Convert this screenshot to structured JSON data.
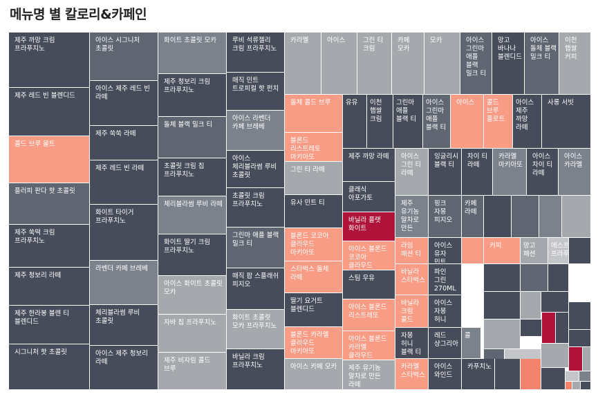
{
  "title": "메뉴명 별 칼로리&카페인",
  "colors": {
    "dark": "#474c5a",
    "mid": "#5f6672",
    "steel": "#7c828c",
    "light": "#a5a9ad",
    "pale": "#c3c5c8",
    "salmon": "#f99c86",
    "coral": "#f3836c",
    "crimson": "#b0133a"
  },
  "chart_data": {
    "type": "treemap",
    "title": "메뉴명 별 칼로리&카페인",
    "tiles": [
      {
        "label": "제주 까망 크림 프라푸치노",
        "color": "dark"
      },
      {
        "label": "제주 레드 빈 블렌디드",
        "color": "dark"
      },
      {
        "label": "콜드 브루 몰트",
        "color": "salmon"
      },
      {
        "label": "플러피 판다 핫 초콜릿",
        "color": "mid"
      },
      {
        "label": "제주 쑥떡 크림 프라푸치노",
        "color": "dark"
      },
      {
        "label": "제주 청보리 라떼",
        "color": "dark"
      },
      {
        "label": "제주 한라봉 블렌 티 블렌디드",
        "color": "dark"
      },
      {
        "label": "시그니처 핫 초콜릿",
        "color": "dark"
      },
      {
        "label": "아이스 시그니처 초콜릿",
        "color": "mid"
      },
      {
        "label": "아이스 제주 레드 빈 라떼",
        "color": "dark"
      },
      {
        "label": "제주 쑥쑥 라떼",
        "color": "dark"
      },
      {
        "label": "제주 레드 빈 라떼",
        "color": "dark"
      },
      {
        "label": "화이트 타이거 프라푸치노",
        "color": "dark"
      },
      {
        "label": "라벤더 카페 브레베",
        "color": "steel"
      },
      {
        "label": "체리블라썸 루비 초콜릿",
        "color": "dark"
      },
      {
        "label": "아이스 제주 청보리 라떼",
        "color": "dark"
      },
      {
        "label": "화이트 초콜릿 모카",
        "color": "steel"
      },
      {
        "label": "제주 청보리 크림 프라푸치노",
        "color": "dark"
      },
      {
        "label": "돌체 블랙 밀크 티",
        "color": "mid"
      },
      {
        "label": "초콜릿 크림 칩 프라푸치노",
        "color": "dark"
      },
      {
        "label": "체리블라썸 루비 라떼",
        "color": "steel"
      },
      {
        "label": "화이트 딸기 크림 프라푸치노",
        "color": "dark"
      },
      {
        "label": "아이스 화이트 초콜릿 모카",
        "color": "light"
      },
      {
        "label": "자바 칩 프라푸치노",
        "color": "light"
      },
      {
        "label": "제주 비자림 콜드 브루",
        "color": "light"
      },
      {
        "label": "루비 석류젤리 크림 프라푸치노",
        "color": "dark"
      },
      {
        "label": "매직 민트 트로피컬 핫 펀치",
        "color": "dark"
      },
      {
        "label": "아이스 라벤더 카페 브레베",
        "color": "steel"
      },
      {
        "label": "아이스 체리블라썸 루비 초콜릿",
        "color": "dark"
      },
      {
        "label": "초콜릿 크림 프라푸치노",
        "color": "dark"
      },
      {
        "label": "그린마 애플 블랙 밀크 티",
        "color": "mid"
      },
      {
        "label": "매직 팝 스플래쉬 피지오",
        "color": "dark"
      },
      {
        "label": "화이트 초콜릿 모카 프라푸치노",
        "color": "light"
      },
      {
        "label": "바닐라 크림 프라푸치노",
        "color": "dark"
      },
      {
        "label": "카라멜",
        "color": "light"
      },
      {
        "label": "아이스",
        "color": "light"
      },
      {
        "label": "그린 티 크림",
        "color": "light"
      },
      {
        "label": "카페 모카",
        "color": "light"
      },
      {
        "label": "모카",
        "color": "light"
      },
      {
        "label": "아이스 그린마 애플 블랙 밀크 티",
        "color": "mid"
      },
      {
        "label": "망고 바나나 블렌디드",
        "color": "dark"
      },
      {
        "label": "아이스 돌체 블랙 밀크 티",
        "color": "mid"
      },
      {
        "label": "이천 햅쌀 커피",
        "color": "light"
      },
      {
        "label": "돌체 콜드 브루",
        "color": "salmon"
      },
      {
        "label": "블론드 리스트레토 마키아또",
        "color": "salmon"
      },
      {
        "label": "그린 티 라떼",
        "color": "light"
      },
      {
        "label": "유사 민트 티",
        "color": "dark"
      },
      {
        "label": "블론드 코코아 클라우드 마키아또",
        "color": "salmon"
      },
      {
        "label": "스타벅스 돌체 라떼",
        "color": "salmon"
      },
      {
        "label": "딸기 요거트 블렌디드",
        "color": "dark"
      },
      {
        "label": "블론드 카라멜 클라우드 마키아또",
        "color": "salmon"
      },
      {
        "label": "아이스 카페 모카",
        "color": "light"
      },
      {
        "label": "유유",
        "color": "dark"
      },
      {
        "label": "이천 햅쌀 크림",
        "color": "dark"
      },
      {
        "label": "그린마 애플 블랙 티",
        "color": "dark"
      },
      {
        "label": "아이스 그린마 애플 블랙 티",
        "color": "mid"
      },
      {
        "label": "아이스",
        "color": "salmon"
      },
      {
        "label": "콜드 브루 플로트",
        "color": "salmon"
      },
      {
        "label": "아이스 제주 까망 라떼",
        "color": "dark"
      },
      {
        "label": "사롱 서빗",
        "color": "dark"
      },
      {
        "label": "제주 까망 라떼",
        "color": "dark"
      },
      {
        "label": "클래식 아포가토",
        "color": "dark"
      },
      {
        "label": "바닐라 플랫 화이트",
        "color": "crimson"
      },
      {
        "label": "아이스 블론드 코코아 클라우드",
        "color": "salmon"
      },
      {
        "label": "스팀 우유",
        "color": "dark"
      },
      {
        "label": "아이스 블론드 리스트레또",
        "color": "salmon"
      },
      {
        "label": "아이스 블론드 카라멜 클라우드",
        "color": "salmon"
      },
      {
        "label": "제주 유기농 말차로 만든 라떼",
        "color": "light"
      },
      {
        "label": "아이스 그린 티 라떼",
        "color": "light"
      },
      {
        "label": "잉글리시 블랙 티",
        "color": "dark"
      },
      {
        "label": "차이 티 라떼",
        "color": "dark"
      },
      {
        "label": "카라멜 마키아또",
        "color": "steel"
      },
      {
        "label": "아이스 차이 티 라떼",
        "color": "dark"
      },
      {
        "label": "아이스 카라멜",
        "color": "steel"
      },
      {
        "label": "제주 유기농 말차로 만든",
        "color": "steel"
      },
      {
        "label": "핑크 자몽 피지오",
        "color": "mid"
      },
      {
        "label": "카페 라떼",
        "color": "mid"
      },
      {
        "label": "라임 패션 티",
        "color": "salmon"
      },
      {
        "label": "아이스 유자 민트",
        "color": "dark"
      },
      {
        "label": "커피",
        "color": "salmon"
      },
      {
        "label": "망고 패션",
        "color": "light"
      },
      {
        "label": "에스프레소 프라푸치노",
        "color": "pale"
      },
      {
        "label": "바닐라 스타벅스",
        "color": "salmon"
      },
      {
        "label": "파인 그린 270ML",
        "color": "dark"
      },
      {
        "label": "바닐라 크림 콜드",
        "color": "salmon"
      },
      {
        "label": "아이스 자몽 허니",
        "color": "dark"
      },
      {
        "label": "레드 샹그리아",
        "color": "dark"
      },
      {
        "label": "자몽 허니 블랙 티",
        "color": "dark"
      },
      {
        "label": "아이스 와인드",
        "color": "dark"
      },
      {
        "label": "카라멜 스타벅스",
        "color": "salmon"
      },
      {
        "label": "카푸치노",
        "color": "dark"
      },
      {
        "label": "콜",
        "color": "steel"
      }
    ]
  }
}
